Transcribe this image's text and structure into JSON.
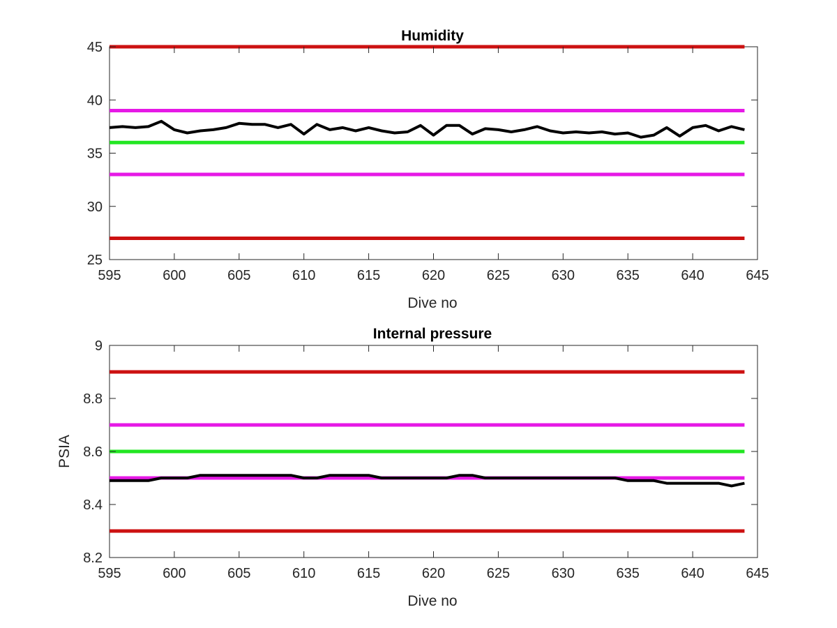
{
  "chart_data": [
    {
      "type": "line",
      "title": "Humidity",
      "xlabel": "Dive no",
      "ylabel": "",
      "xlim": [
        595,
        645
      ],
      "ylim": [
        25,
        45
      ],
      "xticks": [
        595,
        600,
        605,
        610,
        615,
        620,
        625,
        630,
        635,
        640,
        645
      ],
      "yticks": [
        25,
        30,
        35,
        40,
        45
      ],
      "grid": false,
      "x": [
        595,
        596,
        597,
        598,
        599,
        600,
        601,
        602,
        603,
        604,
        605,
        606,
        607,
        608,
        609,
        610,
        611,
        612,
        613,
        614,
        615,
        616,
        617,
        618,
        619,
        620,
        621,
        622,
        623,
        624,
        625,
        626,
        627,
        628,
        629,
        630,
        631,
        632,
        633,
        634,
        635,
        636,
        637,
        638,
        639,
        640,
        641,
        642,
        643,
        644
      ],
      "series": [
        {
          "color": "#000000",
          "values": [
            37.4,
            37.5,
            37.4,
            37.5,
            38.0,
            37.2,
            36.9,
            37.1,
            37.2,
            37.4,
            37.8,
            37.7,
            37.7,
            37.4,
            37.7,
            36.8,
            37.7,
            37.2,
            37.4,
            37.1,
            37.4,
            37.1,
            36.9,
            37.0,
            37.6,
            36.7,
            37.6,
            37.6,
            36.8,
            37.3,
            37.2,
            37.0,
            37.2,
            37.5,
            37.1,
            36.9,
            37.0,
            36.9,
            37.0,
            36.8,
            36.9,
            36.5,
            36.7,
            37.4,
            36.6,
            37.4,
            37.6,
            37.1,
            37.5,
            37.2
          ]
        }
      ],
      "reference_lines": [
        {
          "value": 45,
          "color": "#cc1111"
        },
        {
          "value": 39,
          "color": "#e619e6"
        },
        {
          "value": 36,
          "color": "#22e622"
        },
        {
          "value": 33,
          "color": "#e619e6"
        },
        {
          "value": 27,
          "color": "#cc1111"
        }
      ]
    },
    {
      "type": "line",
      "title": "Internal pressure",
      "xlabel": "Dive no",
      "ylabel": "PSIA",
      "xlim": [
        595,
        645
      ],
      "ylim": [
        8.2,
        9.0
      ],
      "xticks": [
        595,
        600,
        605,
        610,
        615,
        620,
        625,
        630,
        635,
        640,
        645
      ],
      "yticks": [
        8.2,
        8.4,
        8.6,
        8.8,
        9
      ],
      "ytick_labels": [
        "8.2",
        "8.4",
        "8.6",
        "8.8",
        "9"
      ],
      "grid": false,
      "x": [
        595,
        596,
        597,
        598,
        599,
        600,
        601,
        602,
        603,
        604,
        605,
        606,
        607,
        608,
        609,
        610,
        611,
        612,
        613,
        614,
        615,
        616,
        617,
        618,
        619,
        620,
        621,
        622,
        623,
        624,
        625,
        626,
        627,
        628,
        629,
        630,
        631,
        632,
        633,
        634,
        635,
        636,
        637,
        638,
        639,
        640,
        641,
        642,
        643,
        644
      ],
      "series": [
        {
          "color": "#000000",
          "values": [
            8.49,
            8.49,
            8.49,
            8.49,
            8.5,
            8.5,
            8.5,
            8.51,
            8.51,
            8.51,
            8.51,
            8.51,
            8.51,
            8.51,
            8.51,
            8.5,
            8.5,
            8.51,
            8.51,
            8.51,
            8.51,
            8.5,
            8.5,
            8.5,
            8.5,
            8.5,
            8.5,
            8.51,
            8.51,
            8.5,
            8.5,
            8.5,
            8.5,
            8.5,
            8.5,
            8.5,
            8.5,
            8.5,
            8.5,
            8.5,
            8.49,
            8.49,
            8.49,
            8.48,
            8.48,
            8.48,
            8.48,
            8.48,
            8.47,
            8.48
          ]
        }
      ],
      "reference_lines": [
        {
          "value": 8.9,
          "color": "#cc1111"
        },
        {
          "value": 8.7,
          "color": "#e619e6"
        },
        {
          "value": 8.6,
          "color": "#22e622"
        },
        {
          "value": 8.5,
          "color": "#e619e6"
        },
        {
          "value": 8.3,
          "color": "#cc1111"
        }
      ]
    }
  ]
}
